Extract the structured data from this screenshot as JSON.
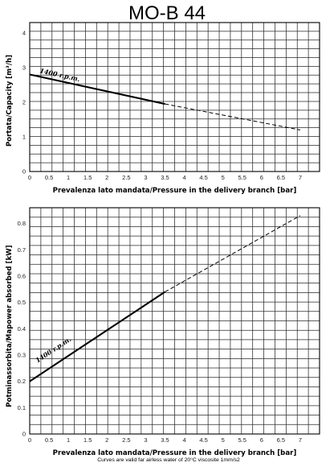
{
  "title": "MO-B 44",
  "note": "Curves are valid far airless water of 20°C viscosite 1mm/s2",
  "chart_data": [
    {
      "type": "line",
      "xlabel": "Prevalenza lato mandata/Pressure in the delivery branch [bar]",
      "ylabel": "Portata/Capacity [m³/h]",
      "xlim": [
        0,
        7.5
      ],
      "ylim": [
        0,
        4.3
      ],
      "x_ticks": [
        "0",
        "0.5",
        "1",
        "1.5",
        "2",
        "2.5",
        "3",
        "3.5",
        "4",
        "4.5",
        "5",
        "5.5",
        "6",
        "6.5",
        "7"
      ],
      "y_ticks": [
        "0",
        "1",
        "2",
        "3",
        "4"
      ],
      "grid": true,
      "series": [
        {
          "name": "1400 r.p.m.",
          "style": "solid",
          "x": [
            0,
            3.5
          ],
          "y": [
            2.8,
            1.95
          ]
        },
        {
          "style": "dashed",
          "x": [
            3.5,
            7
          ],
          "y": [
            1.95,
            1.2
          ]
        }
      ]
    },
    {
      "type": "line",
      "xlabel": "Prevalenza lato mandata/Pressure in the delivery branch [bar]",
      "ylabel": "Potminassorbita/Mapower absorbed [kW]",
      "xlim": [
        0,
        7.5
      ],
      "ylim": [
        0,
        0.86
      ],
      "x_ticks": [
        "0",
        "0.5",
        "1",
        "1.5",
        "2",
        "2.5",
        "3",
        "3.5",
        "4",
        "4.5",
        "5",
        "5.5",
        "6",
        "6.5",
        "7"
      ],
      "y_ticks": [
        "0",
        "0.1",
        "0.2",
        "0.3",
        "0.4",
        "0.5",
        "0.6",
        "0.7",
        "0.8"
      ],
      "grid": true,
      "series": [
        {
          "name": "1400 r.p.m.",
          "style": "solid",
          "x": [
            0,
            3.5
          ],
          "y": [
            0.2,
            0.54
          ]
        },
        {
          "style": "dashed",
          "x": [
            3.5,
            7
          ],
          "y": [
            0.54,
            0.83
          ]
        }
      ]
    }
  ]
}
